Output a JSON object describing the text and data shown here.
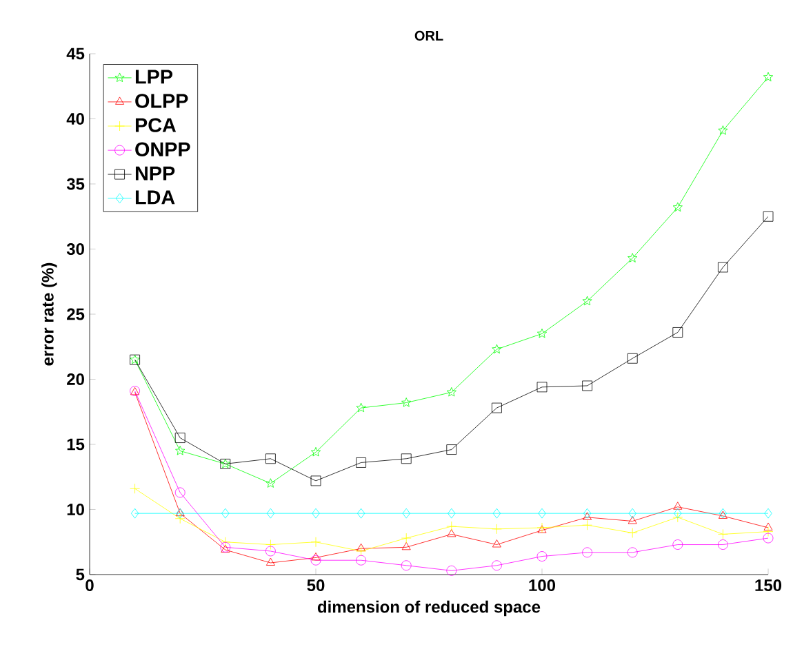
{
  "chart_data": {
    "type": "line",
    "title": "ORL",
    "xlabel": "dimension of reduced space",
    "ylabel": "error rate (%)",
    "x": [
      10,
      20,
      30,
      40,
      50,
      60,
      70,
      80,
      90,
      100,
      110,
      120,
      130,
      140,
      150
    ],
    "series": [
      {
        "name": "LPP",
        "color": "#00ff00",
        "marker": "star",
        "values": [
          21.5,
          14.5,
          13.5,
          12.0,
          14.4,
          17.8,
          18.2,
          19.0,
          22.3,
          23.5,
          26.0,
          29.3,
          33.2,
          39.1,
          43.2
        ]
      },
      {
        "name": "OLPP",
        "color": "#ff0000",
        "marker": "triangle",
        "values": [
          19.0,
          9.7,
          6.9,
          5.9,
          6.3,
          7.0,
          7.1,
          8.1,
          7.3,
          8.4,
          9.4,
          9.1,
          10.2,
          9.5,
          8.6
        ]
      },
      {
        "name": "PCA",
        "color": "#ffff00",
        "marker": "cross",
        "values": [
          11.6,
          9.3,
          7.5,
          7.3,
          7.5,
          6.8,
          7.8,
          8.7,
          8.5,
          8.6,
          8.8,
          8.2,
          9.4,
          8.1,
          8.3
        ]
      },
      {
        "name": "ONPP",
        "color": "#ff00ff",
        "marker": "circle",
        "values": [
          19.1,
          11.3,
          7.1,
          6.8,
          6.1,
          6.1,
          5.7,
          5.3,
          5.7,
          6.4,
          6.7,
          6.7,
          7.3,
          7.3,
          7.8
        ]
      },
      {
        "name": "NPP",
        "color": "#000000",
        "marker": "square",
        "values": [
          21.5,
          15.5,
          13.5,
          13.9,
          12.2,
          13.6,
          13.9,
          14.6,
          17.8,
          19.4,
          19.5,
          21.6,
          23.6,
          28.6,
          32.5
        ]
      },
      {
        "name": "LDA",
        "color": "#00ffff",
        "marker": "diamond",
        "values": [
          9.7,
          9.7,
          9.7,
          9.7,
          9.7,
          9.7,
          9.7,
          9.7,
          9.7,
          9.7,
          9.7,
          9.7,
          9.7,
          9.7,
          9.7
        ]
      }
    ],
    "xlim": [
      0,
      150
    ],
    "xticks": [
      0,
      50,
      100,
      150
    ],
    "ylim": [
      5,
      45
    ],
    "yticks": [
      5,
      10,
      15,
      20,
      25,
      30,
      35,
      40,
      45
    ],
    "legend": "top left",
    "grid": false,
    "line_style": "solid"
  }
}
